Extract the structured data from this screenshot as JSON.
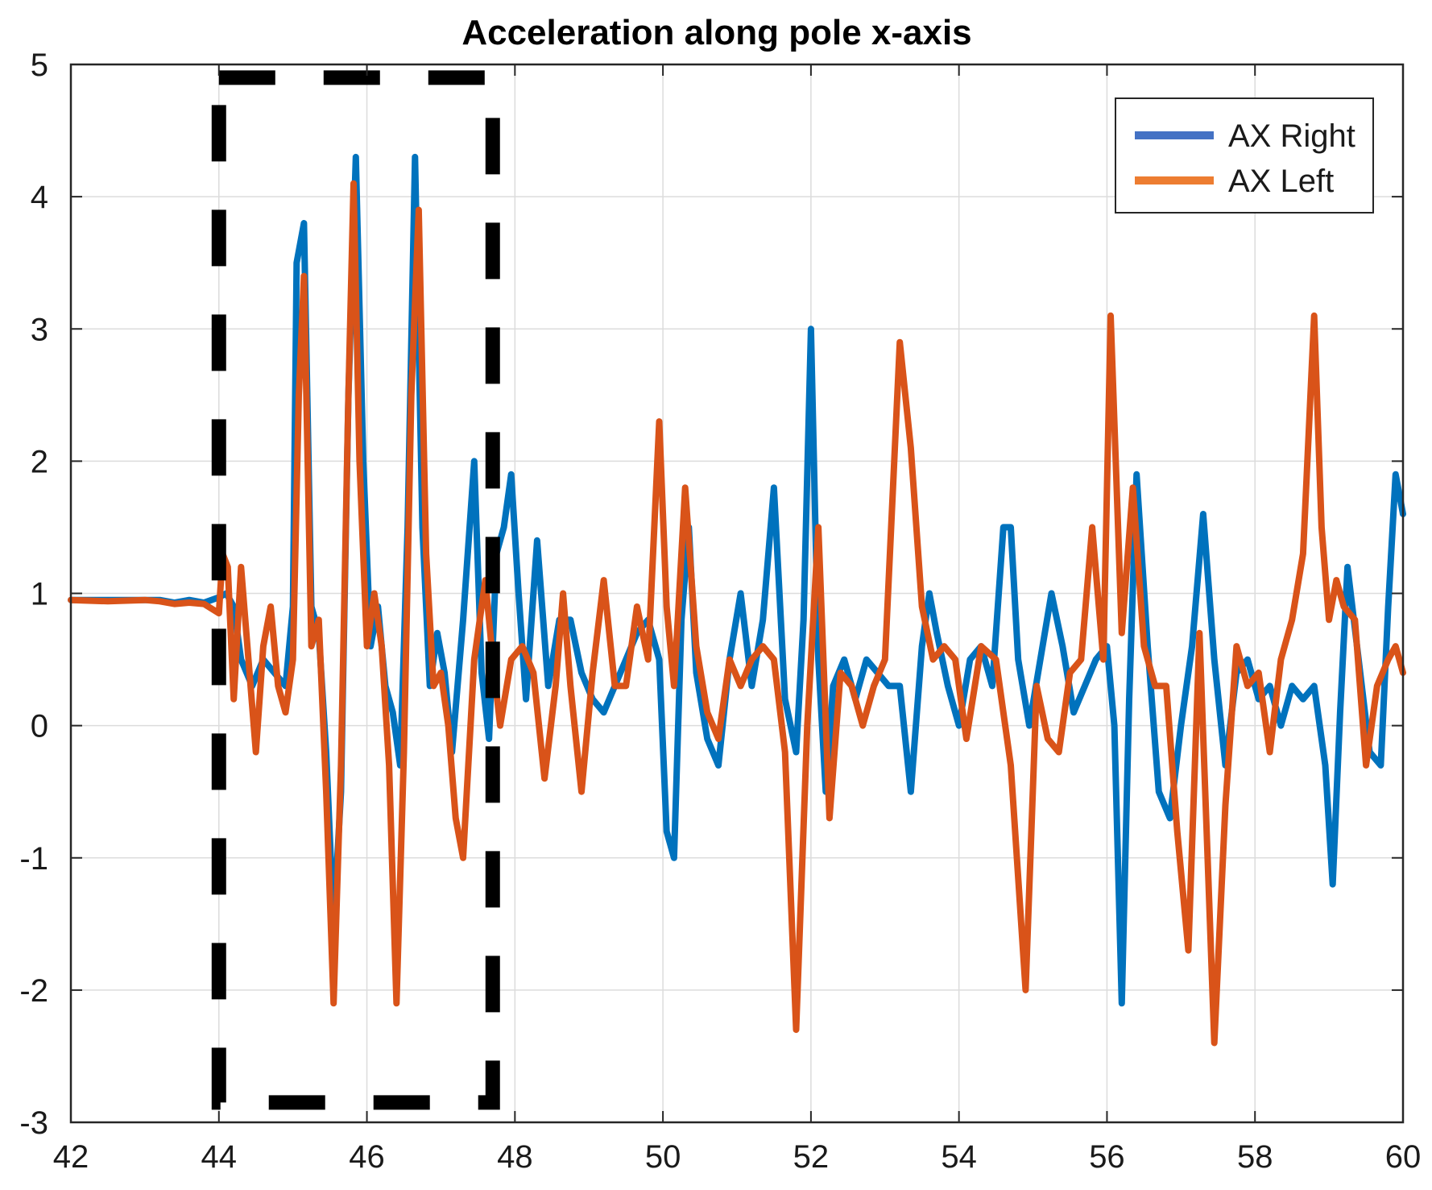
{
  "chart_data": {
    "type": "line",
    "title": "Acceleration along pole x-axis",
    "xlabel": "",
    "ylabel": "",
    "xlim": [
      42,
      60
    ],
    "ylim": [
      -3,
      5
    ],
    "xticks": [
      42,
      44,
      46,
      48,
      50,
      52,
      54,
      56,
      58,
      60
    ],
    "yticks": [
      -3,
      -2,
      -1,
      0,
      1,
      2,
      3,
      4,
      5
    ],
    "grid": true,
    "legend_position": "top-right",
    "highlight_box": {
      "x": [
        44,
        47.7
      ],
      "y": [
        -2.85,
        4.9
      ],
      "style": "dashed",
      "color": "#000000"
    },
    "series": [
      {
        "name": "AX Right",
        "color": "#0072BD",
        "legend_color": "#4472C4",
        "x": [
          42,
          42.5,
          43,
          43.2,
          43.4,
          43.6,
          43.8,
          44,
          44.1,
          44.2,
          44.3,
          44.45,
          44.6,
          44.75,
          44.9,
          45,
          45.05,
          45.15,
          45.25,
          45.35,
          45.45,
          45.55,
          45.65,
          45.75,
          45.85,
          45.95,
          46.05,
          46.15,
          46.25,
          46.35,
          46.45,
          46.55,
          46.65,
          46.75,
          46.85,
          46.95,
          47.05,
          47.15,
          47.3,
          47.45,
          47.55,
          47.65,
          47.75,
          47.85,
          47.95,
          48.05,
          48.15,
          48.3,
          48.45,
          48.6,
          48.75,
          48.9,
          49.05,
          49.2,
          49.35,
          49.5,
          49.65,
          49.8,
          49.95,
          50.05,
          50.15,
          50.25,
          50.35,
          50.45,
          50.6,
          50.75,
          50.9,
          51.05,
          51.2,
          51.35,
          51.5,
          51.65,
          51.8,
          51.9,
          52,
          52.1,
          52.2,
          52.3,
          52.45,
          52.6,
          52.75,
          52.9,
          53.05,
          53.2,
          53.35,
          53.5,
          53.6,
          53.7,
          53.85,
          54,
          54.15,
          54.3,
          54.45,
          54.6,
          54.7,
          54.8,
          54.95,
          55.1,
          55.25,
          55.4,
          55.55,
          55.7,
          55.85,
          56,
          56.1,
          56.2,
          56.3,
          56.4,
          56.55,
          56.7,
          56.85,
          57,
          57.15,
          57.3,
          57.45,
          57.6,
          57.75,
          57.9,
          58.05,
          58.2,
          58.35,
          58.5,
          58.65,
          58.8,
          58.95,
          59.05,
          59.15,
          59.25,
          59.4,
          59.55,
          59.7,
          59.8,
          59.9,
          60
        ],
        "values": [
          0.95,
          0.95,
          0.95,
          0.95,
          0.93,
          0.95,
          0.93,
          0.97,
          1.0,
          0.9,
          0.5,
          0.3,
          0.5,
          0.4,
          0.3,
          0.9,
          3.5,
          3.8,
          0.9,
          0.7,
          -0.2,
          -1.5,
          -0.5,
          2.5,
          4.3,
          2.0,
          0.6,
          0.9,
          0.3,
          0.1,
          -0.3,
          1.5,
          4.3,
          1.5,
          0.3,
          0.7,
          0.4,
          -0.2,
          0.8,
          2.0,
          0.4,
          -0.1,
          1.3,
          1.5,
          1.9,
          1.0,
          0.2,
          1.4,
          0.3,
          0.8,
          0.8,
          0.4,
          0.2,
          0.1,
          0.3,
          0.5,
          0.7,
          0.8,
          0.5,
          -0.8,
          -1.0,
          0.8,
          1.5,
          0.4,
          -0.1,
          -0.3,
          0.5,
          1.0,
          0.3,
          0.8,
          1.8,
          0.2,
          -0.2,
          0.8,
          3.0,
          0.5,
          -0.5,
          0.3,
          0.5,
          0.2,
          0.5,
          0.4,
          0.3,
          0.3,
          -0.5,
          0.6,
          1.0,
          0.7,
          0.3,
          0.0,
          0.5,
          0.6,
          0.3,
          1.5,
          1.5,
          0.5,
          0.0,
          0.5,
          1.0,
          0.6,
          0.1,
          0.3,
          0.5,
          0.6,
          0.0,
          -2.1,
          0.2,
          1.9,
          0.6,
          -0.5,
          -0.7,
          0.0,
          0.6,
          1.6,
          0.5,
          -0.3,
          0.4,
          0.5,
          0.2,
          0.3,
          0.0,
          0.3,
          0.2,
          0.3,
          -0.3,
          -1.2,
          0.1,
          1.2,
          0.5,
          -0.2,
          -0.3,
          0.9,
          1.9,
          1.6
        ]
      },
      {
        "name": "AX Left",
        "color": "#D95319",
        "legend_color": "#ED7D31",
        "x": [
          42,
          42.5,
          43,
          43.2,
          43.4,
          43.6,
          43.8,
          44,
          44.05,
          44.12,
          44.2,
          44.3,
          44.4,
          44.5,
          44.6,
          44.7,
          44.8,
          44.9,
          45,
          45.08,
          45.15,
          45.25,
          45.35,
          45.45,
          45.55,
          45.65,
          45.75,
          45.82,
          45.9,
          46,
          46.1,
          46.2,
          46.3,
          46.4,
          46.5,
          46.6,
          46.7,
          46.8,
          46.9,
          47,
          47.1,
          47.2,
          47.3,
          47.45,
          47.6,
          47.7,
          47.8,
          47.95,
          48.1,
          48.25,
          48.4,
          48.55,
          48.65,
          48.75,
          48.9,
          49.05,
          49.2,
          49.35,
          49.5,
          49.65,
          49.8,
          49.95,
          50.05,
          50.15,
          50.3,
          50.45,
          50.6,
          50.75,
          50.9,
          51.05,
          51.2,
          51.35,
          51.5,
          51.65,
          51.8,
          51.95,
          52.1,
          52.25,
          52.4,
          52.55,
          52.7,
          52.85,
          53,
          53.2,
          53.35,
          53.5,
          53.65,
          53.8,
          53.95,
          54.1,
          54.3,
          54.5,
          54.7,
          54.9,
          55.05,
          55.2,
          55.35,
          55.5,
          55.65,
          55.8,
          55.95,
          56.05,
          56.2,
          56.35,
          56.5,
          56.65,
          56.8,
          56.95,
          57.1,
          57.25,
          57.45,
          57.6,
          57.75,
          57.9,
          58.05,
          58.2,
          58.35,
          58.5,
          58.65,
          58.8,
          58.9,
          59.0,
          59.1,
          59.2,
          59.35,
          59.5,
          59.65,
          59.8,
          59.9,
          60
        ],
        "values": [
          0.95,
          0.94,
          0.95,
          0.94,
          0.92,
          0.93,
          0.92,
          0.85,
          1.3,
          1.2,
          0.2,
          1.2,
          0.5,
          -0.2,
          0.6,
          0.9,
          0.3,
          0.1,
          0.5,
          2.5,
          3.4,
          0.6,
          0.8,
          -0.5,
          -2.1,
          -0.3,
          2.5,
          4.1,
          2.0,
          0.6,
          1.0,
          0.6,
          -0.3,
          -2.1,
          -0.2,
          2.5,
          3.9,
          1.3,
          0.3,
          0.4,
          0.0,
          -0.7,
          -1.0,
          0.5,
          1.1,
          0.5,
          0.0,
          0.5,
          0.6,
          0.4,
          -0.4,
          0.3,
          1.0,
          0.3,
          -0.5,
          0.4,
          1.1,
          0.3,
          0.3,
          0.9,
          0.5,
          2.3,
          0.9,
          0.3,
          1.8,
          0.6,
          0.1,
          -0.1,
          0.5,
          0.3,
          0.5,
          0.6,
          0.5,
          -0.2,
          -2.3,
          0.0,
          1.5,
          -0.7,
          0.4,
          0.3,
          0.0,
          0.3,
          0.5,
          2.9,
          2.1,
          0.9,
          0.5,
          0.6,
          0.5,
          -0.1,
          0.6,
          0.5,
          -0.3,
          -2.0,
          0.3,
          -0.1,
          -0.2,
          0.4,
          0.5,
          1.5,
          0.5,
          3.1,
          0.7,
          1.8,
          0.6,
          0.3,
          0.3,
          -0.8,
          -1.7,
          0.7,
          -2.4,
          -0.6,
          0.6,
          0.3,
          0.4,
          -0.2,
          0.5,
          0.8,
          1.3,
          3.1,
          1.5,
          0.8,
          1.1,
          0.9,
          0.8,
          -0.3,
          0.3,
          0.5,
          0.6,
          0.4
        ]
      }
    ]
  }
}
